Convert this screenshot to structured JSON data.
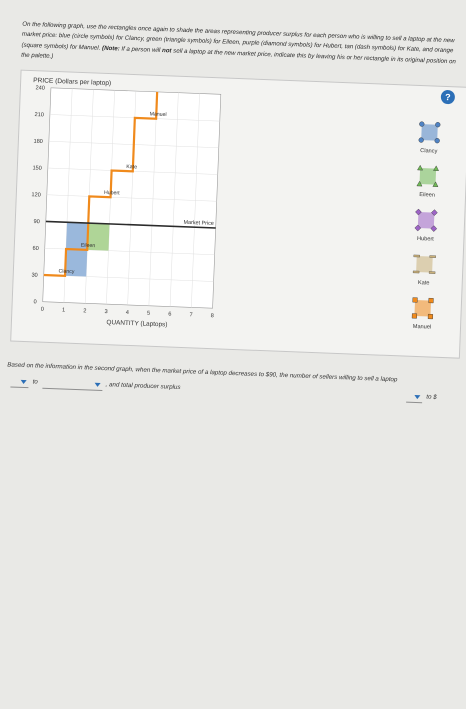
{
  "instructions": {
    "p1": "On the following graph, use the rectangles once again to shade the areas representing producer surplus for each person who is willing to sell a laptop at the new market price: blue (circle symbols) for Clancy, green (triangle symbols) for Eileen, purple (diamond symbols) for Hubert, tan (dash symbols) for Kate, and orange (square symbols) for Manuel.",
    "note_label": "(Note:",
    "p2": "If a person will",
    "not_word": "not",
    "p3": "sell a laptop at the new market price, indicate this by leaving his or her rectangle in its original position on the palette.)"
  },
  "help_label": "?",
  "chart": {
    "ylabel": "PRICE (Dollars per laptop)",
    "xlabel": "QUANTITY (Laptops)",
    "yticks": [
      "0",
      "30",
      "60",
      "90",
      "120",
      "150",
      "180",
      "210",
      "240"
    ],
    "xticks": [
      "0",
      "1",
      "2",
      "3",
      "4",
      "5",
      "6",
      "7",
      "8"
    ],
    "step_labels": [
      "Clancy",
      "Eileen",
      "Hubert",
      "Kate",
      "Manuel"
    ],
    "market_price_label": "Market Price"
  },
  "chart_data": {
    "type": "line",
    "x": [
      0,
      1,
      1,
      2,
      2,
      3,
      3,
      4,
      4,
      5,
      5
    ],
    "y": [
      30,
      30,
      60,
      60,
      120,
      120,
      150,
      150,
      210,
      210,
      240
    ],
    "market_price": 90,
    "shaded": [
      {
        "name": "Clancy",
        "x0": 1,
        "x1": 2,
        "y0": 30,
        "y1": 90,
        "color": "#8fb0d8"
      },
      {
        "name": "Eileen",
        "x0": 2,
        "x1": 3,
        "y0": 60,
        "y1": 90,
        "color": "#a6d08c"
      }
    ],
    "xlabel": "QUANTITY (Laptops)",
    "ylabel": "PRICE (Dollars per laptop)",
    "xlim": [
      0,
      8
    ],
    "ylim": [
      0,
      240
    ],
    "line_color": "#f08a1c",
    "market_line_color": "#2b2b2b"
  },
  "palette": [
    {
      "label": "Clancy",
      "icon": "circle-symbol-rectangle",
      "color": "#4f83c4"
    },
    {
      "label": "Eileen",
      "icon": "triangle-symbol-rectangle",
      "color": "#6fba55"
    },
    {
      "label": "Hubert",
      "icon": "diamond-symbol-rectangle",
      "color": "#9d63c6"
    },
    {
      "label": "Kate",
      "icon": "dash-symbol-rectangle",
      "color": "#c9b07a"
    },
    {
      "label": "Manuel",
      "icon": "square-symbol-rectangle",
      "color": "#f08a1c"
    }
  ],
  "question": {
    "text": "Based on the information in the second graph, when the market price of a laptop decreases to $90, the number of sellers willing to sell a laptop",
    "to1": "to",
    "mid": ", and total producer surplus",
    "to2": "to $"
  }
}
